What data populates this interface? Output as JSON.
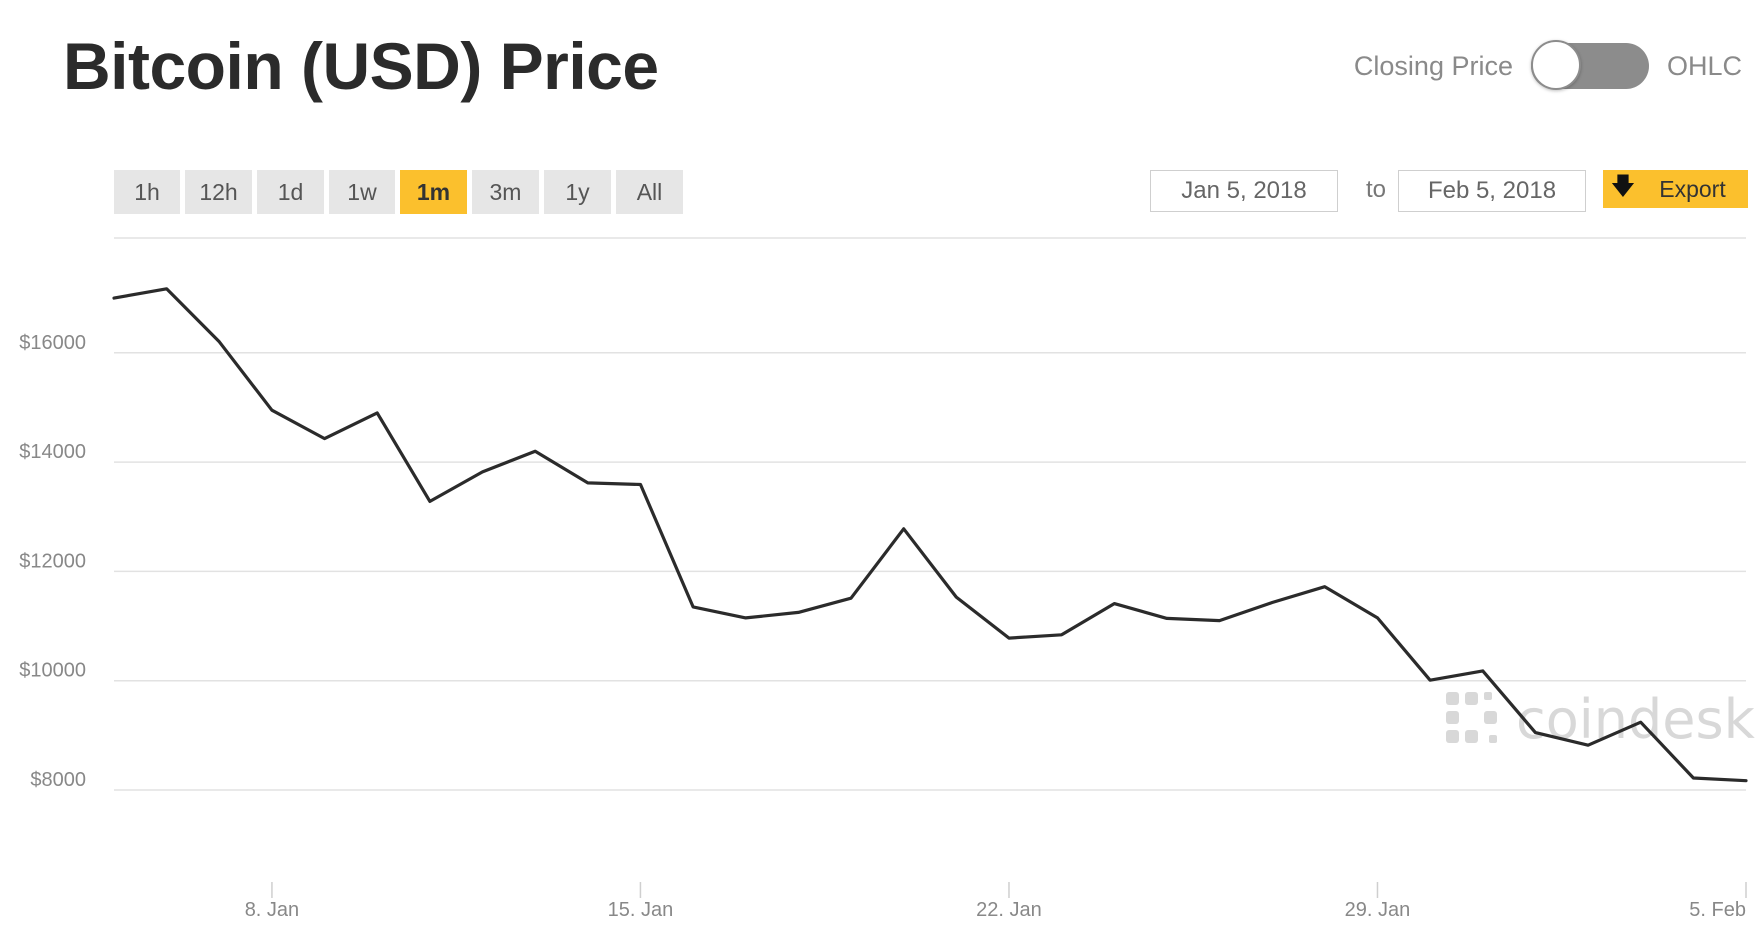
{
  "header": {
    "title": "Bitcoin (USD) Price"
  },
  "toggle": {
    "left_label": "Closing Price",
    "right_label": "OHLC",
    "selected": "Closing Price"
  },
  "ranges": [
    {
      "label": "1h",
      "active": false
    },
    {
      "label": "12h",
      "active": false
    },
    {
      "label": "1d",
      "active": false
    },
    {
      "label": "1w",
      "active": false
    },
    {
      "label": "1m",
      "active": true
    },
    {
      "label": "3m",
      "active": false
    },
    {
      "label": "1y",
      "active": false
    },
    {
      "label": "All",
      "active": false
    }
  ],
  "date_range": {
    "from": "Jan 5, 2018",
    "to_label": "to",
    "to": "Feb 5, 2018"
  },
  "export": {
    "label": "Export",
    "icon": "download-arrow-icon"
  },
  "watermark": {
    "text": "coindesk",
    "icon": "coindesk-logo-icon"
  },
  "colors": {
    "accent": "#fbc02d",
    "line": "#2b2b2b",
    "grid": "#e2e2e2"
  },
  "chart_data": {
    "type": "line",
    "title": "",
    "xlabel": "",
    "ylabel": "",
    "ylim": [
      6500,
      18100
    ],
    "xlim": [
      5,
      36
    ],
    "grid": true,
    "y_ticks": [
      {
        "value": 8000,
        "label": "$8000"
      },
      {
        "value": 10000,
        "label": "$10000"
      },
      {
        "value": 12000,
        "label": "$12000"
      },
      {
        "value": 14000,
        "label": "$14000"
      },
      {
        "value": 16000,
        "label": "$16000"
      }
    ],
    "x_ticks": [
      {
        "value": 8,
        "label": "8. Jan"
      },
      {
        "value": 15,
        "label": "15. Jan"
      },
      {
        "value": 22,
        "label": "22. Jan"
      },
      {
        "value": 29,
        "label": "29. Jan"
      },
      {
        "value": 36,
        "label": "5. Feb"
      }
    ],
    "series": [
      {
        "x": [
          5,
          6,
          7,
          8,
          9,
          10,
          11,
          12,
          13,
          14,
          15,
          16,
          17,
          18,
          19,
          20,
          21,
          22,
          23,
          24,
          25,
          26,
          27,
          28,
          29,
          30,
          31,
          32,
          33,
          34,
          35,
          36
        ],
        "values": [
          17000,
          17170,
          16200,
          14950,
          14430,
          14900,
          13280,
          13820,
          14200,
          13620,
          13590,
          11350,
          11150,
          11250,
          11510,
          12780,
          11530,
          10780,
          10840,
          11410,
          11140,
          11100,
          11430,
          11720,
          11150,
          10010,
          10180,
          9050,
          8820,
          9240,
          8220,
          8170
        ]
      }
    ]
  }
}
